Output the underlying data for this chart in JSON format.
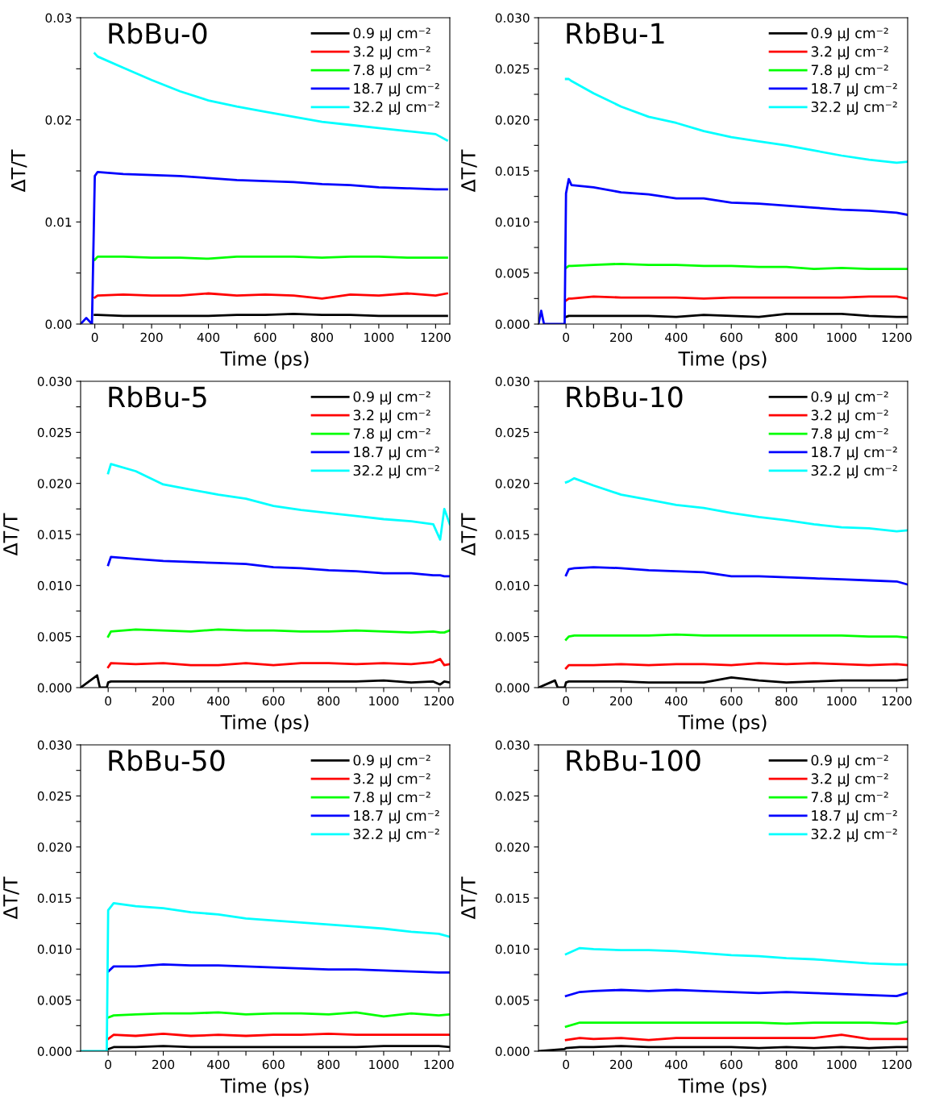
{
  "chart_data": [
    {
      "type": "line",
      "title": "RbBu-0",
      "xlabel": "Time (ps)",
      "ylabel": "ΔT/T",
      "legend": "top right",
      "grid": false,
      "marker": "none",
      "line_style": "solid",
      "xlim": [
        -50,
        1250
      ],
      "ylim": [
        0,
        0.03
      ],
      "xticks": [
        0,
        {
          "value": 100,
          "label": null
        },
        200,
        {
          "value": 300,
          "label": null
        },
        400,
        {
          "value": 500,
          "label": null
        },
        600,
        {
          "value": 700,
          "label": null
        },
        800,
        {
          "value": 900,
          "label": null
        },
        1000,
        {
          "value": 1100,
          "label": null
        },
        1200
      ],
      "yticks": [
        {
          "value": 0,
          "label": "0.00"
        },
        {
          "value": 0.005,
          "label": null
        },
        {
          "value": 0.01,
          "label": "0.01"
        },
        {
          "value": 0.015,
          "label": null
        },
        {
          "value": 0.02,
          "label": "0.02"
        },
        {
          "value": 0.025,
          "label": null
        },
        {
          "value": 0.03,
          "label": "0.03"
        }
      ],
      "x": [
        -50,
        -30,
        -10,
        0,
        10,
        100,
        200,
        300,
        400,
        500,
        600,
        700,
        800,
        900,
        1000,
        1100,
        1200,
        1240
      ],
      "series": [
        {
          "name": "0.9 μJ cm⁻²",
          "color": "#000000",
          "values": [
            null,
            null,
            null,
            0.0009,
            0.0009,
            0.0008,
            0.0008,
            0.0008,
            0.0008,
            0.0009,
            0.0009,
            0.001,
            0.0009,
            0.0009,
            0.0008,
            0.0008,
            0.0008,
            0.0008
          ]
        },
        {
          "name": "3.2 μJ cm⁻²",
          "color": "#ff0000",
          "values": [
            null,
            null,
            null,
            0.0026,
            0.0028,
            0.0029,
            0.0028,
            0.0028,
            0.003,
            0.0028,
            0.0029,
            0.0028,
            0.0025,
            0.0029,
            0.0028,
            0.003,
            0.0028,
            0.003
          ]
        },
        {
          "name": "7.8 μJ cm⁻²",
          "color": "#00ff00",
          "values": [
            null,
            null,
            null,
            0.0063,
            0.0066,
            0.0066,
            0.0065,
            0.0065,
            0.0064,
            0.0066,
            0.0066,
            0.0066,
            0.0065,
            0.0066,
            0.0066,
            0.0065,
            0.0065,
            0.0065
          ]
        },
        {
          "name": "18.7 μJ cm⁻²",
          "color": "#0000ff",
          "values": [
            0,
            0.0006,
            0,
            0.0145,
            0.0149,
            0.0147,
            0.0146,
            0.0145,
            0.0143,
            0.0141,
            0.014,
            0.0139,
            0.0137,
            0.0136,
            0.0134,
            0.0133,
            0.0132,
            0.0132
          ]
        },
        {
          "name": "32.2 μJ cm⁻²",
          "color": "#00ffff",
          "values": [
            null,
            null,
            null,
            0.0265,
            0.0262,
            0.0251,
            0.0239,
            0.0228,
            0.0219,
            0.0213,
            0.0208,
            0.0203,
            0.0198,
            0.0195,
            0.0192,
            0.0189,
            0.0186,
            0.018
          ]
        }
      ]
    },
    {
      "type": "line",
      "title": "RbBu-1",
      "xlabel": "Time (ps)",
      "ylabel": "ΔT/T",
      "legend": "top right",
      "grid": false,
      "marker": "none",
      "line_style": "solid",
      "xlim": [
        -100,
        1240
      ],
      "ylim": [
        0,
        0.03
      ],
      "xticks": [
        0,
        {
          "value": 100,
          "label": null
        },
        200,
        {
          "value": 300,
          "label": null
        },
        400,
        {
          "value": 500,
          "label": null
        },
        600,
        {
          "value": 700,
          "label": null
        },
        800,
        {
          "value": 900,
          "label": null
        },
        1000,
        {
          "value": 1100,
          "label": null
        },
        1200
      ],
      "yticks": [
        {
          "value": 0,
          "label": "0.000"
        },
        {
          "value": 0.0025,
          "label": null
        },
        {
          "value": 0.005,
          "label": "0.005"
        },
        {
          "value": 0.0075,
          "label": null
        },
        {
          "value": 0.01,
          "label": "0.010"
        },
        {
          "value": 0.0125,
          "label": null
        },
        {
          "value": 0.015,
          "label": "0.015"
        },
        {
          "value": 0.0175,
          "label": null
        },
        {
          "value": 0.02,
          "label": "0.020"
        },
        {
          "value": 0.0225,
          "label": null
        },
        {
          "value": 0.025,
          "label": "0.025"
        },
        {
          "value": 0.0275,
          "label": null
        },
        {
          "value": 0.03,
          "label": "0.030"
        }
      ],
      "x": [
        -100,
        -90,
        -80,
        -20,
        -5,
        0,
        10,
        20,
        100,
        200,
        300,
        400,
        500,
        600,
        700,
        800,
        900,
        1000,
        1100,
        1200,
        1240
      ],
      "series": [
        {
          "name": "0.9 μJ cm⁻²",
          "color": "#000000",
          "values": [
            null,
            null,
            null,
            null,
            null,
            0.0007,
            0.0008,
            0.0008,
            0.0008,
            0.0008,
            0.0008,
            0.0007,
            0.0009,
            0.0008,
            0.0007,
            0.001,
            0.001,
            0.001,
            0.0008,
            0.0007,
            0.0007
          ]
        },
        {
          "name": "3.2 μJ cm⁻²",
          "color": "#ff0000",
          "values": [
            null,
            null,
            null,
            null,
            null,
            0.0023,
            0.0025,
            0.0025,
            0.0027,
            0.0026,
            0.0026,
            0.0026,
            0.0025,
            0.0026,
            0.0026,
            0.0026,
            0.0026,
            0.0026,
            0.0027,
            0.0027,
            0.0025
          ]
        },
        {
          "name": "7.8 μJ cm⁻²",
          "color": "#00ff00",
          "values": [
            null,
            null,
            null,
            null,
            null,
            0.0055,
            0.0057,
            0.0057,
            0.0058,
            0.0059,
            0.0058,
            0.0058,
            0.0057,
            0.0057,
            0.0056,
            0.0056,
            0.0054,
            0.0055,
            0.0054,
            0.0054,
            0.0054
          ]
        },
        {
          "name": "18.7 μJ cm⁻²",
          "color": "#0000ff",
          "values": [
            0,
            0.0013,
            0,
            0,
            0,
            0.0128,
            0.0142,
            0.0136,
            0.0134,
            0.0129,
            0.0127,
            0.0123,
            0.0123,
            0.0119,
            0.0118,
            0.0116,
            0.0114,
            0.0112,
            0.0111,
            0.0109,
            0.0107
          ]
        },
        {
          "name": "32.2 μJ cm⁻²",
          "color": "#00ffff",
          "values": [
            null,
            null,
            null,
            null,
            null,
            0.024,
            0.024,
            0.0238,
            0.0226,
            0.0213,
            0.0203,
            0.0197,
            0.0189,
            0.0183,
            0.0179,
            0.0175,
            0.017,
            0.0165,
            0.0161,
            0.0158,
            0.0159
          ]
        }
      ]
    },
    {
      "type": "line",
      "title": "RbBu-5",
      "xlabel": "Time (ps)",
      "ylabel": "ΔT/T",
      "legend": "top right",
      "grid": false,
      "marker": "none",
      "line_style": "solid",
      "xlim": [
        -100,
        1240
      ],
      "ylim": [
        0,
        0.03
      ],
      "xticks": [
        0,
        {
          "value": 100,
          "label": null
        },
        200,
        {
          "value": 300,
          "label": null
        },
        400,
        {
          "value": 500,
          "label": null
        },
        600,
        {
          "value": 700,
          "label": null
        },
        800,
        {
          "value": 900,
          "label": null
        },
        1000,
        {
          "value": 1100,
          "label": null
        },
        1200
      ],
      "yticks": [
        {
          "value": 0,
          "label": "0.000"
        },
        {
          "value": 0.0025,
          "label": null
        },
        {
          "value": 0.005,
          "label": "0.005"
        },
        {
          "value": 0.0075,
          "label": null
        },
        {
          "value": 0.01,
          "label": "0.010"
        },
        {
          "value": 0.0125,
          "label": null
        },
        {
          "value": 0.015,
          "label": "0.015"
        },
        {
          "value": 0.0175,
          "label": null
        },
        {
          "value": 0.02,
          "label": "0.020"
        },
        {
          "value": 0.0225,
          "label": null
        },
        {
          "value": 0.025,
          "label": "0.025"
        },
        {
          "value": 0.0275,
          "label": null
        },
        {
          "value": 0.03,
          "label": "0.030"
        }
      ],
      "x": [
        -100,
        -40,
        -30,
        -5,
        0,
        10,
        100,
        200,
        300,
        400,
        500,
        600,
        700,
        800,
        900,
        1000,
        1100,
        1180,
        1205,
        1220,
        1240
      ],
      "series": [
        {
          "name": "0.9 μJ cm⁻²",
          "color": "#000000",
          "values": [
            0,
            0.0012,
            0,
            0,
            0.0005,
            0.0006,
            0.0006,
            0.0006,
            0.0006,
            0.0006,
            0.0006,
            0.0006,
            0.0006,
            0.0006,
            0.0006,
            0.0007,
            0.0005,
            0.0006,
            0.0003,
            0.0006,
            0.0005
          ]
        },
        {
          "name": "3.2 μJ cm⁻²",
          "color": "#ff0000",
          "values": [
            null,
            null,
            null,
            null,
            0.002,
            0.0024,
            0.0023,
            0.0024,
            0.0022,
            0.0022,
            0.0024,
            0.0022,
            0.0024,
            0.0024,
            0.0023,
            0.0024,
            0.0023,
            0.0025,
            0.0028,
            0.0022,
            0.0023
          ]
        },
        {
          "name": "7.8 μJ cm⁻²",
          "color": "#00ff00",
          "values": [
            null,
            null,
            null,
            null,
            0.005,
            0.0055,
            0.0057,
            0.0056,
            0.0055,
            0.0057,
            0.0056,
            0.0056,
            0.0055,
            0.0055,
            0.0056,
            0.0055,
            0.0054,
            0.0055,
            0.0054,
            0.0054,
            0.0056
          ]
        },
        {
          "name": "18.7 μJ cm⁻²",
          "color": "#0000ff",
          "values": [
            null,
            null,
            null,
            null,
            0.012,
            0.0128,
            0.0126,
            0.0124,
            0.0123,
            0.0122,
            0.0121,
            0.0118,
            0.0117,
            0.0115,
            0.0114,
            0.0112,
            0.0112,
            0.011,
            0.011,
            0.0109,
            0.0109
          ]
        },
        {
          "name": "32.2 μJ cm⁻²",
          "color": "#00ffff",
          "values": [
            null,
            null,
            null,
            null,
            0.021,
            0.0219,
            0.0212,
            0.0199,
            0.0194,
            0.0189,
            0.0185,
            0.0178,
            0.0174,
            0.0171,
            0.0168,
            0.0165,
            0.0163,
            0.016,
            0.0145,
            0.0175,
            0.016
          ]
        }
      ]
    },
    {
      "type": "line",
      "title": "RbBu-10",
      "xlabel": "Time (ps)",
      "ylabel": "ΔT/T",
      "legend": "top right",
      "grid": false,
      "marker": "none",
      "line_style": "solid",
      "xlim": [
        -100,
        1240
      ],
      "ylim": [
        0,
        0.03
      ],
      "xticks": [
        0,
        {
          "value": 100,
          "label": null
        },
        200,
        {
          "value": 300,
          "label": null
        },
        400,
        {
          "value": 500,
          "label": null
        },
        600,
        {
          "value": 700,
          "label": null
        },
        800,
        {
          "value": 900,
          "label": null
        },
        1000,
        {
          "value": 1100,
          "label": null
        },
        1200
      ],
      "yticks": [
        {
          "value": 0,
          "label": "0.000"
        },
        {
          "value": 0.0025,
          "label": null
        },
        {
          "value": 0.005,
          "label": "0.005"
        },
        {
          "value": 0.0075,
          "label": null
        },
        {
          "value": 0.01,
          "label": "0.010"
        },
        {
          "value": 0.0125,
          "label": null
        },
        {
          "value": 0.015,
          "label": "0.015"
        },
        {
          "value": 0.0175,
          "label": null
        },
        {
          "value": 0.02,
          "label": "0.020"
        },
        {
          "value": 0.0225,
          "label": null
        },
        {
          "value": 0.025,
          "label": "0.025"
        },
        {
          "value": 0.0275,
          "label": null
        },
        {
          "value": 0.03,
          "label": "0.030"
        }
      ],
      "x": [
        -100,
        -40,
        -30,
        -5,
        0,
        10,
        30,
        100,
        200,
        300,
        400,
        500,
        600,
        700,
        800,
        900,
        1000,
        1100,
        1200,
        1240
      ],
      "series": [
        {
          "name": "0.9 μJ cm⁻²",
          "color": "#000000",
          "values": [
            0,
            0.0007,
            0,
            0,
            0.0005,
            0.0006,
            0.0006,
            0.0006,
            0.0006,
            0.0005,
            0.0005,
            0.0005,
            0.001,
            0.0007,
            0.0005,
            0.0006,
            0.0007,
            0.0007,
            0.0007,
            0.0008
          ]
        },
        {
          "name": "3.2 μJ cm⁻²",
          "color": "#ff0000",
          "values": [
            null,
            null,
            null,
            null,
            0.0019,
            0.0022,
            0.0022,
            0.0022,
            0.0023,
            0.0022,
            0.0023,
            0.0023,
            0.0022,
            0.0024,
            0.0023,
            0.0024,
            0.0023,
            0.0022,
            0.0023,
            0.0022
          ]
        },
        {
          "name": "7.8 μJ cm⁻²",
          "color": "#00ff00",
          "values": [
            null,
            null,
            null,
            null,
            0.0047,
            0.005,
            0.0051,
            0.0051,
            0.0051,
            0.0051,
            0.0052,
            0.0051,
            0.0051,
            0.0051,
            0.0051,
            0.0051,
            0.0051,
            0.005,
            0.005,
            0.0049
          ]
        },
        {
          "name": "18.7 μJ cm⁻²",
          "color": "#0000ff",
          "values": [
            null,
            null,
            null,
            null,
            0.011,
            0.0116,
            0.0117,
            0.0118,
            0.0117,
            0.0115,
            0.0114,
            0.0113,
            0.0109,
            0.0109,
            0.0108,
            0.0107,
            0.0106,
            0.0105,
            0.0104,
            0.0101
          ]
        },
        {
          "name": "32.2 μJ cm⁻²",
          "color": "#00ffff",
          "values": [
            null,
            null,
            null,
            null,
            0.0201,
            0.0202,
            0.0205,
            0.0198,
            0.0189,
            0.0184,
            0.0179,
            0.0176,
            0.0171,
            0.0167,
            0.0164,
            0.016,
            0.0157,
            0.0156,
            0.0153,
            0.0154
          ]
        }
      ]
    },
    {
      "type": "line",
      "title": "RbBu-50",
      "xlabel": "Time (ps)",
      "ylabel": "ΔT/T",
      "legend": "top right",
      "grid": false,
      "marker": "none",
      "line_style": "solid",
      "xlim": [
        -100,
        1240
      ],
      "ylim": [
        0,
        0.03
      ],
      "xticks": [
        0,
        {
          "value": 100,
          "label": null
        },
        200,
        {
          "value": 300,
          "label": null
        },
        400,
        {
          "value": 500,
          "label": null
        },
        600,
        {
          "value": 700,
          "label": null
        },
        800,
        {
          "value": 900,
          "label": null
        },
        1000,
        {
          "value": 1100,
          "label": null
        },
        1200
      ],
      "yticks": [
        {
          "value": 0,
          "label": "0.000"
        },
        {
          "value": 0.0025,
          "label": null
        },
        {
          "value": 0.005,
          "label": "0.005"
        },
        {
          "value": 0.0075,
          "label": null
        },
        {
          "value": 0.01,
          "label": "0.010"
        },
        {
          "value": 0.0125,
          "label": null
        },
        {
          "value": 0.015,
          "label": "0.015"
        },
        {
          "value": 0.0175,
          "label": null
        },
        {
          "value": 0.02,
          "label": "0.020"
        },
        {
          "value": 0.0225,
          "label": null
        },
        {
          "value": 0.025,
          "label": "0.025"
        },
        {
          "value": 0.0275,
          "label": null
        },
        {
          "value": 0.03,
          "label": "0.030"
        }
      ],
      "x": [
        -100,
        -5,
        0,
        20,
        100,
        200,
        300,
        400,
        500,
        600,
        700,
        800,
        900,
        1000,
        1100,
        1200,
        1240
      ],
      "series": [
        {
          "name": "0.9 μJ cm⁻²",
          "color": "#000000",
          "values": [
            null,
            null,
            0.0002,
            0.0004,
            0.0004,
            0.0005,
            0.0004,
            0.0004,
            0.0004,
            0.0004,
            0.0004,
            0.0004,
            0.0004,
            0.0005,
            0.0005,
            0.0005,
            0.0004
          ]
        },
        {
          "name": "3.2 μJ cm⁻²",
          "color": "#ff0000",
          "values": [
            null,
            null,
            0.0012,
            0.0016,
            0.0015,
            0.0017,
            0.0015,
            0.0016,
            0.0015,
            0.0016,
            0.0016,
            0.0017,
            0.0016,
            0.0016,
            0.0016,
            0.0016,
            0.0016
          ]
        },
        {
          "name": "7.8 μJ cm⁻²",
          "color": "#00ff00",
          "values": [
            null,
            null,
            0.0033,
            0.0035,
            0.0036,
            0.0037,
            0.0037,
            0.0038,
            0.0036,
            0.0037,
            0.0037,
            0.0036,
            0.0038,
            0.0034,
            0.0037,
            0.0035,
            0.0036
          ]
        },
        {
          "name": "18.7 μJ cm⁻²",
          "color": "#0000ff",
          "values": [
            null,
            null,
            0.0078,
            0.0083,
            0.0083,
            0.0085,
            0.0084,
            0.0084,
            0.0083,
            0.0082,
            0.0081,
            0.008,
            0.008,
            0.0079,
            0.0078,
            0.0077,
            0.0077
          ]
        },
        {
          "name": "32.2 μJ cm⁻²",
          "color": "#00ffff",
          "values": [
            0,
            0,
            0.0138,
            0.0145,
            0.0142,
            0.014,
            0.0136,
            0.0134,
            0.013,
            0.0128,
            0.0126,
            0.0124,
            0.0122,
            0.012,
            0.0117,
            0.0115,
            0.0112
          ]
        }
      ]
    },
    {
      "type": "line",
      "title": "RbBu-100",
      "xlabel": "Time (ps)",
      "ylabel": "ΔT/T",
      "legend": "top right",
      "grid": false,
      "marker": "none",
      "line_style": "solid",
      "xlim": [
        -100,
        1240
      ],
      "ylim": [
        0,
        0.03
      ],
      "xticks": [
        0,
        {
          "value": 100,
          "label": null
        },
        200,
        {
          "value": 300,
          "label": null
        },
        400,
        {
          "value": 500,
          "label": null
        },
        600,
        {
          "value": 700,
          "label": null
        },
        800,
        {
          "value": 900,
          "label": null
        },
        1000,
        {
          "value": 1100,
          "label": null
        },
        1200
      ],
      "yticks": [
        {
          "value": 0,
          "label": "0.000"
        },
        {
          "value": 0.0025,
          "label": null
        },
        {
          "value": 0.005,
          "label": "0.005"
        },
        {
          "value": 0.0075,
          "label": null
        },
        {
          "value": 0.01,
          "label": "0.010"
        },
        {
          "value": 0.0125,
          "label": null
        },
        {
          "value": 0.015,
          "label": "0.015"
        },
        {
          "value": 0.0175,
          "label": null
        },
        {
          "value": 0.02,
          "label": "0.020"
        },
        {
          "value": 0.0225,
          "label": null
        },
        {
          "value": 0.025,
          "label": "0.025"
        },
        {
          "value": 0.0275,
          "label": null
        },
        {
          "value": 0.03,
          "label": "0.030"
        }
      ],
      "x": [
        -100,
        -5,
        0,
        50,
        100,
        200,
        300,
        400,
        500,
        600,
        700,
        800,
        900,
        1000,
        1100,
        1200,
        1240
      ],
      "series": [
        {
          "name": "0.9 μJ cm⁻²",
          "color": "#000000",
          "values": [
            0,
            0.0002,
            0.0003,
            0.0004,
            0.0004,
            0.0005,
            0.0004,
            0.0004,
            0.0004,
            0.0004,
            0.0003,
            0.0004,
            0.0003,
            0.0004,
            0.0003,
            0.0004,
            0.0004
          ]
        },
        {
          "name": "3.2 μJ cm⁻²",
          "color": "#ff0000",
          "values": [
            null,
            null,
            0.0011,
            0.0013,
            0.0012,
            0.0013,
            0.0011,
            0.0013,
            0.0013,
            0.0013,
            0.0013,
            0.0013,
            0.0013,
            0.0016,
            0.0012,
            0.0012,
            0.0012
          ]
        },
        {
          "name": "7.8 μJ cm⁻²",
          "color": "#00ff00",
          "values": [
            null,
            null,
            0.0024,
            0.0028,
            0.0028,
            0.0028,
            0.0028,
            0.0028,
            0.0028,
            0.0028,
            0.0028,
            0.0027,
            0.0028,
            0.0028,
            0.0028,
            0.0027,
            0.0029
          ]
        },
        {
          "name": "18.7 μJ cm⁻²",
          "color": "#0000ff",
          "values": [
            null,
            null,
            0.0054,
            0.0058,
            0.0059,
            0.006,
            0.0059,
            0.006,
            0.0059,
            0.0058,
            0.0057,
            0.0058,
            0.0057,
            0.0056,
            0.0055,
            0.0054,
            0.0057
          ]
        },
        {
          "name": "32.2 μJ cm⁻²",
          "color": "#00ffff",
          "values": [
            null,
            null,
            0.0095,
            0.0101,
            0.01,
            0.0099,
            0.0099,
            0.0098,
            0.0096,
            0.0094,
            0.0093,
            0.0091,
            0.009,
            0.0088,
            0.0086,
            0.0085,
            0.0085
          ]
        }
      ]
    }
  ]
}
